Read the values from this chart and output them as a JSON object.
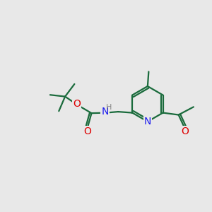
{
  "bg_color": "#e8e8e8",
  "bond_color": "#1a6b3c",
  "n_color": "#1a1aee",
  "o_color": "#dd0000",
  "h_color": "#888888",
  "font_size": 9,
  "bond_width": 1.6,
  "fig_size": [
    3.0,
    3.0
  ],
  "dpi": 100,
  "xlim": [
    0,
    10
  ],
  "ylim": [
    0,
    10
  ]
}
